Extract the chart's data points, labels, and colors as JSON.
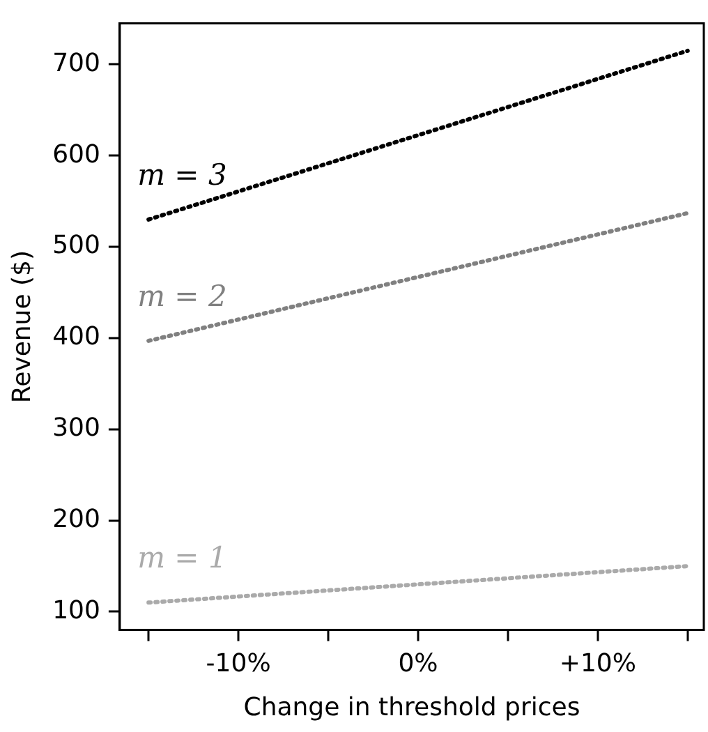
{
  "chart_data": {
    "type": "line",
    "xlabel": "Change in threshold prices",
    "ylabel": "Revenue ($)",
    "x": [
      -15,
      15
    ],
    "series": [
      {
        "name": "m = 3",
        "color": "#000000",
        "values": [
          530,
          715
        ]
      },
      {
        "name": "m = 2",
        "color": "#808080",
        "values": [
          397,
          537
        ]
      },
      {
        "name": "m = 1",
        "color": "#aaaaaa",
        "values": [
          110,
          150
        ]
      }
    ],
    "xlim": [
      -16.6,
      15.9
    ],
    "xticks": [
      {
        "value": -15,
        "label": null
      },
      {
        "value": -10,
        "label": "-10%"
      },
      {
        "value": -5,
        "label": null
      },
      {
        "value": 0,
        "label": "0%"
      },
      {
        "value": 5,
        "label": null
      },
      {
        "value": 10,
        "label": "+10%"
      },
      {
        "value": 15,
        "label": null
      }
    ],
    "ylim": [
      80,
      745
    ],
    "yticks": [
      100,
      200,
      300,
      400,
      500,
      600,
      700
    ],
    "grid": false,
    "legend": false,
    "marker": "none",
    "line_style": "dotted"
  }
}
